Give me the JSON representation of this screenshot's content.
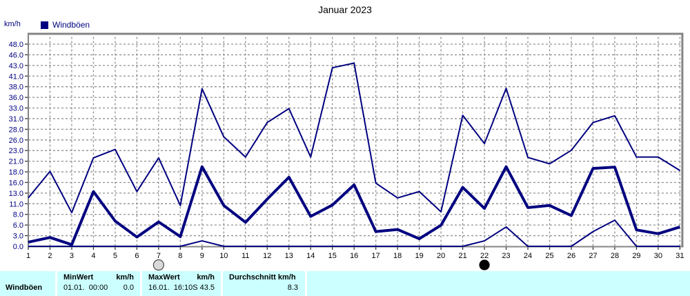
{
  "title": "Januar 2023",
  "y_axis_unit": "km/h",
  "legend": {
    "label": "Windböen",
    "color": "#000080"
  },
  "colors": {
    "line": "#000080",
    "grid": "#8f8f8f",
    "frame": "#848484",
    "table_bg": "#CCFFFF",
    "y_tick_text": "#000080",
    "x_tick_text": "#000000",
    "full_moon_fill": "#d9d9d9",
    "new_moon_fill": "#000000"
  },
  "chart_data": {
    "type": "line",
    "title": "Januar 2023",
    "ylabel": "km/h",
    "ylim": [
      0,
      48
    ],
    "grid": true,
    "legend_position": "top-left",
    "days": [
      1,
      2,
      3,
      4,
      5,
      6,
      7,
      8,
      9,
      10,
      11,
      12,
      13,
      14,
      15,
      16,
      17,
      18,
      19,
      20,
      21,
      22,
      23,
      24,
      25,
      26,
      27,
      28,
      29,
      30,
      31
    ],
    "y_tick_labels": [
      "0.0",
      "3.0",
      "6.0",
      "8.0",
      "11.0",
      "13.0",
      "16.0",
      "18.0",
      "21.0",
      "23.0",
      "26.0",
      "28.0",
      "31.0",
      "33.0",
      "36.0",
      "38.0",
      "41.0",
      "43.0",
      "46.0",
      "48.0"
    ],
    "series": [
      {
        "name": "windboeen-max",
        "width": 2,
        "values": [
          11.5,
          17.8,
          8.0,
          21.0,
          23.0,
          13.0,
          21.0,
          9.7,
          37.4,
          26.0,
          21.2,
          29.4,
          32.7,
          21.2,
          42.4,
          43.5,
          15.0,
          11.5,
          13.0,
          8.2,
          31.1,
          24.4,
          37.5,
          21.1,
          19.6,
          22.8,
          29.4,
          31.0,
          21.2,
          21.2,
          18.0
        ]
      },
      {
        "name": "windboeen-avg",
        "width": 4,
        "values": [
          1.0,
          2.1,
          0.4,
          13.0,
          6.0,
          2.2,
          5.8,
          2.3,
          18.9,
          9.7,
          5.7,
          11.2,
          16.4,
          7.1,
          9.8,
          14.6,
          3.5,
          4.0,
          1.8,
          5.0,
          14.0,
          9.0,
          18.9,
          9.2,
          9.7,
          7.3,
          18.5,
          18.8,
          3.9,
          3.0,
          4.6
        ]
      },
      {
        "name": "windboeen-min",
        "width": 2,
        "values": [
          0,
          0,
          0,
          0,
          0,
          0,
          0,
          0,
          1.3,
          0,
          0,
          0,
          0,
          0,
          0,
          0,
          0,
          0,
          0,
          0,
          0,
          1.3,
          4.6,
          0,
          0,
          0,
          3.5,
          6.2,
          0,
          0,
          0
        ]
      }
    ],
    "markers": [
      {
        "day": 7,
        "icon": "full-moon-icon"
      },
      {
        "day": 22,
        "icon": "new-moon-icon"
      }
    ]
  },
  "table": {
    "row_label": "Windböen",
    "columns": [
      {
        "header_left": "MinWert",
        "header_right": "km/h",
        "value_left": "01.01.  00:00",
        "value_right": "0.0"
      },
      {
        "header_left": "MaxWert",
        "header_right": "km/h",
        "value_left": "16.01.  16:10",
        "value_right": "S 43.5"
      },
      {
        "header_left": "Durchschnitt km/h",
        "header_right": "",
        "value_left": "",
        "value_right": "8.3"
      }
    ]
  }
}
